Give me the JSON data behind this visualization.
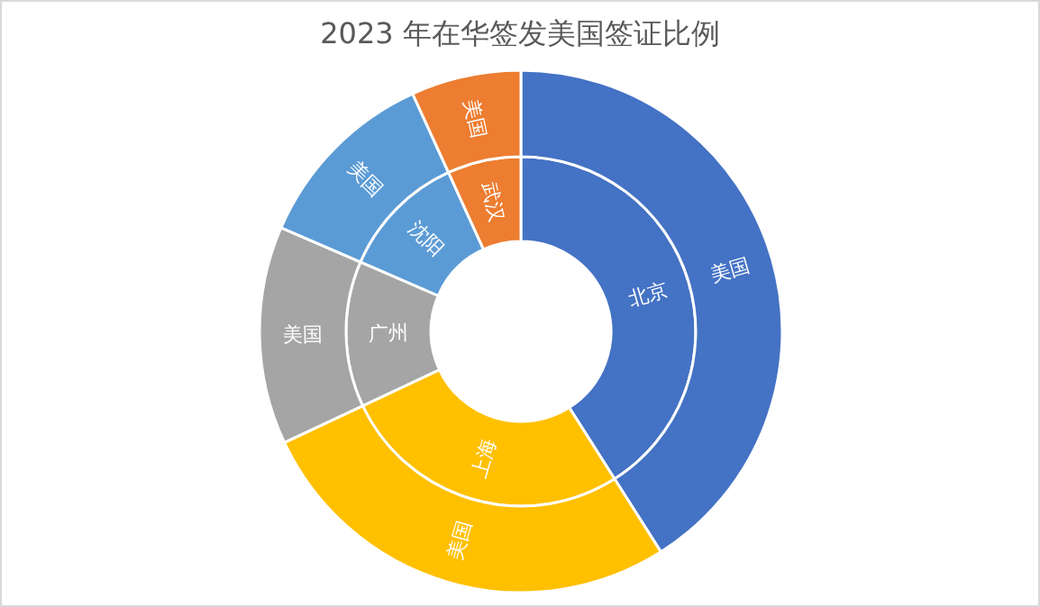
{
  "chart_data": {
    "type": "donut",
    "title": "2023 年在华签发美国签证比例",
    "categories": [
      "北京",
      "上海",
      "广州",
      "沈阳",
      "武汉"
    ],
    "colors": [
      "#4472c4",
      "#ffc000",
      "#a5a5a5",
      "#5b9bd5",
      "#ed7d31"
    ],
    "series": [
      {
        "values": [
          41,
          27,
          13.5,
          11.7,
          6.8
        ]
      },
      {
        "name": "美国",
        "values": [
          41,
          27,
          13.5,
          11.7,
          6.8
        ]
      }
    ]
  }
}
